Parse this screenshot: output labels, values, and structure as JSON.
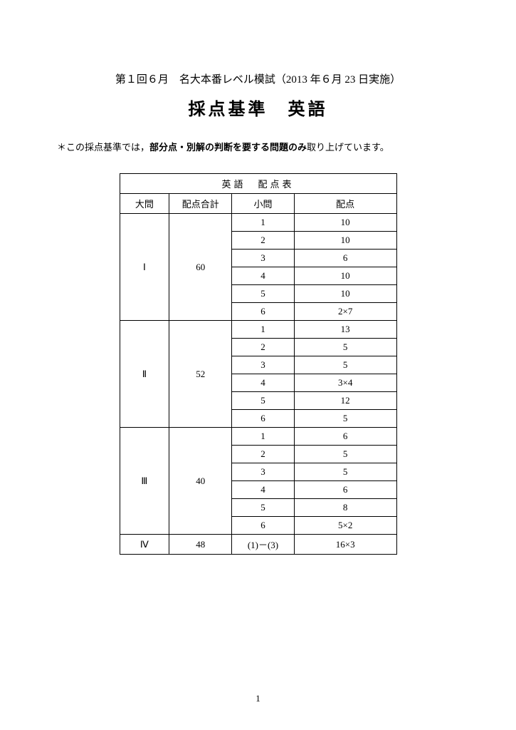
{
  "subtitle": "第１回６月　名大本番レベル模試（2013 年６月 23 日実施）",
  "title": "採点基準　英語",
  "note_prefix": "＊この採点基準では，",
  "note_bold": "部分点・別解の判断を要する問題のみ",
  "note_suffix": "取り上げています。",
  "table_title": "英語　配点表",
  "headers": {
    "c1": "大問",
    "c2": "配点合計",
    "c3": "小問",
    "c4": "配点"
  },
  "sections": [
    {
      "label": "Ⅰ",
      "total": "60",
      "rows": [
        {
          "q": "1",
          "pts": "10"
        },
        {
          "q": "2",
          "pts": "10"
        },
        {
          "q": "3",
          "pts": "6"
        },
        {
          "q": "4",
          "pts": "10"
        },
        {
          "q": "5",
          "pts": "10"
        },
        {
          "q": "6",
          "pts": "2×7"
        }
      ]
    },
    {
      "label": "Ⅱ",
      "total": "52",
      "rows": [
        {
          "q": "1",
          "pts": "13"
        },
        {
          "q": "2",
          "pts": "5"
        },
        {
          "q": "3",
          "pts": "5"
        },
        {
          "q": "4",
          "pts": "3×4"
        },
        {
          "q": "5",
          "pts": "12"
        },
        {
          "q": "6",
          "pts": "5"
        }
      ]
    },
    {
      "label": "Ⅲ",
      "total": "40",
      "rows": [
        {
          "q": "1",
          "pts": "6"
        },
        {
          "q": "2",
          "pts": "5"
        },
        {
          "q": "3",
          "pts": "5"
        },
        {
          "q": "4",
          "pts": "6"
        },
        {
          "q": "5",
          "pts": "8"
        },
        {
          "q": "6",
          "pts": "5×2"
        }
      ]
    },
    {
      "label": "Ⅳ",
      "total": "48",
      "rows": [
        {
          "q": "(1)－(3)",
          "pts": "16×3"
        }
      ]
    }
  ],
  "page_number": "1"
}
